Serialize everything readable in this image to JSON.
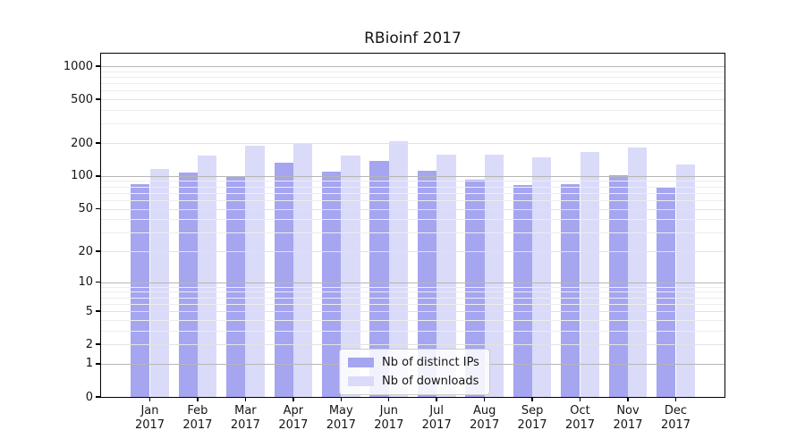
{
  "chart_data": {
    "type": "bar",
    "title": "RBioinf 2017",
    "year": "2017",
    "categories": [
      "Jan 2017",
      "Feb 2017",
      "Mar 2017",
      "Apr 2017",
      "May 2017",
      "Jun 2017",
      "Jul 2017",
      "Aug 2017",
      "Sep 2017",
      "Oct 2017",
      "Nov 2017",
      "Dec 2017"
    ],
    "month_names": [
      "Jan",
      "Feb",
      "Mar",
      "Apr",
      "May",
      "Jun",
      "Jul",
      "Aug",
      "Sep",
      "Oct",
      "Nov",
      "Dec"
    ],
    "series": [
      {
        "name": "Nb of distinct IPs",
        "color": "#a5a5f0",
        "values": [
          85,
          107,
          100,
          132,
          110,
          138,
          112,
          93,
          83,
          85,
          102,
          78
        ]
      },
      {
        "name": "Nb of downloads",
        "color": "#dadaf9",
        "values": [
          115,
          153,
          190,
          198,
          155,
          208,
          156,
          158,
          148,
          166,
          181,
          127
        ]
      }
    ],
    "xlabel": "",
    "ylabel": "",
    "scale": "log1p",
    "ylim": [
      0,
      1300
    ],
    "y_ticks": [
      0,
      1,
      2,
      5,
      10,
      20,
      50,
      100,
      200,
      500,
      1000
    ],
    "y_minor_ticks": [
      3,
      4,
      6,
      7,
      8,
      9,
      30,
      40,
      60,
      70,
      80,
      90,
      300,
      400,
      600,
      700,
      800,
      900
    ],
    "grid": true,
    "legend_position": "inside-bottom-center",
    "colors": {
      "grid_major": "#b6b6b6",
      "grid_minor": "#ededf0",
      "axes_box": "#000000",
      "text": "#151515",
      "background": "#ffffff"
    }
  }
}
